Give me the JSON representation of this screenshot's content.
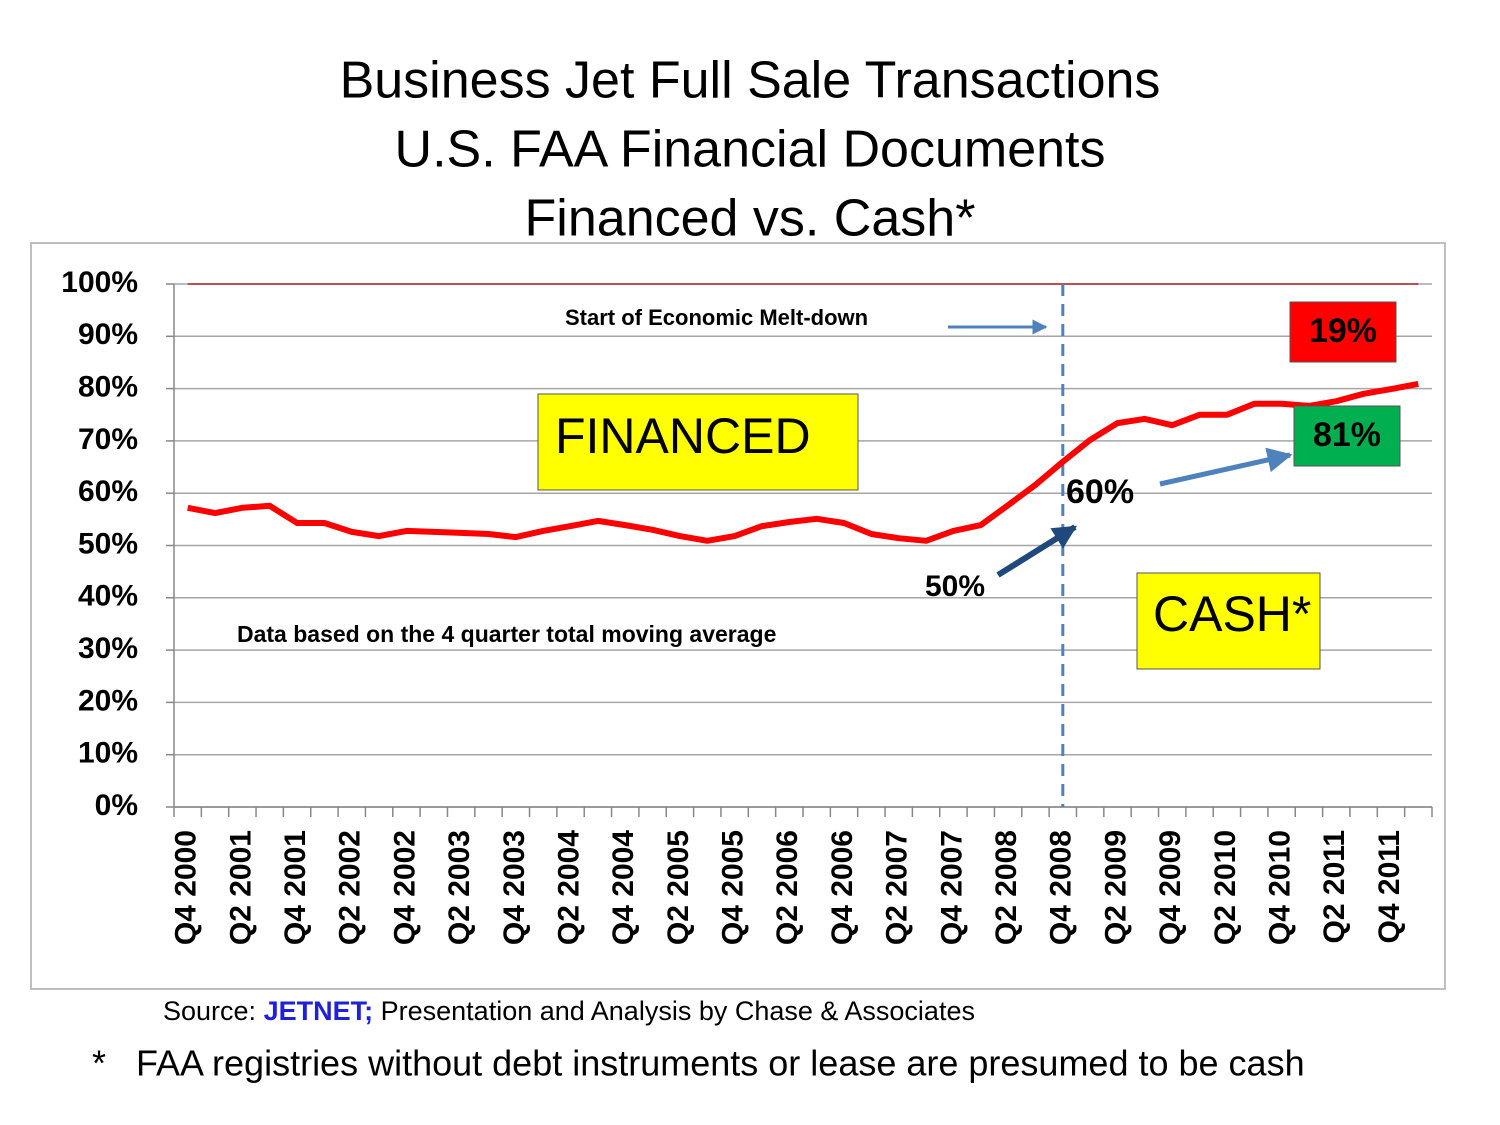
{
  "chart_data": {
    "type": "line",
    "title": [
      "Business Jet Full Sale Transactions",
      "U.S. FAA Financial Documents",
      "Financed vs. Cash*"
    ],
    "categories": [
      "Q4 2000",
      null,
      "Q2 2001",
      null,
      "Q4 2001",
      null,
      "Q2 2002",
      null,
      "Q4 2002",
      null,
      "Q2 2003",
      null,
      "Q4 2003",
      null,
      "Q2 2004",
      null,
      "Q4 2004",
      null,
      "Q2 2005",
      null,
      "Q4 2005",
      null,
      "Q2 2006",
      null,
      "Q4 2006",
      null,
      "Q2 2007",
      null,
      "Q4 2007",
      null,
      "Q2 2008",
      null,
      "Q4 2008",
      null,
      "Q2 2009",
      null,
      "Q4 2009",
      null,
      "Q2 2010",
      null,
      "Q4 2010",
      null,
      "Q2 2011",
      null,
      "Q4 2011",
      null
    ],
    "values": [
      57.2,
      56.2,
      57.2,
      57.6,
      54.3,
      54.3,
      52.6,
      51.8,
      52.8,
      52.6,
      52.4,
      52.2,
      51.6,
      52.8,
      53.7,
      54.7,
      53.9,
      53.0,
      51.8,
      50.9,
      51.8,
      53.7,
      54.5,
      55.1,
      54.3,
      52.2,
      51.4,
      50.9,
      52.8,
      53.9,
      57.7,
      61.6,
      66.0,
      70.2,
      73.4,
      74.2,
      73.0,
      75.0,
      75.0,
      77.1,
      77.1,
      76.7,
      77.6,
      79.0,
      79.9,
      80.9
    ],
    "color": "#ff0000",
    "ylim": [
      0,
      100
    ],
    "yticks": [
      {
        "value": 0,
        "label": "0%"
      },
      {
        "value": 10,
        "label": "10%"
      },
      {
        "value": 20,
        "label": "20%"
      },
      {
        "value": 30,
        "label": "30%"
      },
      {
        "value": 40,
        "label": "40%"
      },
      {
        "value": 50,
        "label": "50%"
      },
      {
        "value": 60,
        "label": "60%"
      },
      {
        "value": 70,
        "label": "70%"
      },
      {
        "value": 80,
        "label": "80%"
      },
      {
        "value": 90,
        "label": "90%"
      },
      {
        "value": 100,
        "label": "100%"
      }
    ],
    "grid": true,
    "reference_line": {
      "value": 100,
      "color": "#c0504d"
    },
    "event_category": "Q4 2008",
    "annotations": {
      "meltdown": "Start of Economic Melt-down",
      "financed": "FINANCED",
      "cash": "CASH*",
      "financed_share": "19%",
      "cash_share": "81%",
      "cash_2008": "60%",
      "cash_2000": "50%",
      "note": "Data based on the 4 quarter total moving average"
    },
    "source": {
      "prefix": "Source:",
      "name": "JETNET;",
      "rest": "Presentation and Analysis by Chase & Associates"
    },
    "footnote": {
      "mark": "*",
      "text": "FAA registries without debt instruments or lease are presumed to be cash"
    }
  }
}
